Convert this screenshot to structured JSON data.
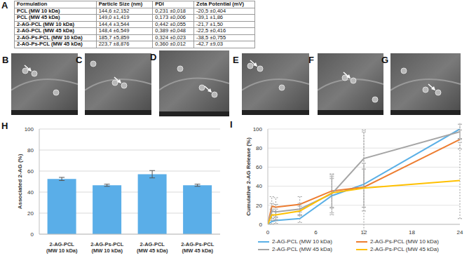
{
  "panel_labels": {
    "table": "A",
    "images": [
      "B",
      "C",
      "D",
      "E",
      "F",
      "G"
    ],
    "charts": [
      "H",
      "I"
    ]
  },
  "table": {
    "header": [
      "Formulation",
      "Particle Size (nm)",
      "PDI",
      "Zeta Potential (mV)"
    ],
    "rows": [
      [
        "PCL (MW 10 kDa)",
        "144,6 ±2,152",
        "0,231 ±0,018",
        "-20,5 ±0,404"
      ],
      [
        "PCL (MW 45 kDa)",
        "149,0 ±1,419",
        "0,173 ±0,006",
        "-39,1 ±1,86"
      ],
      [
        "2-AG-PCL (MW 10 kDa)",
        "144,4 ±3,544",
        "0,442 ±0,055",
        "-21,7 ±1,50"
      ],
      [
        "2-AG-PCL (MW 45 kDa)",
        "148,4 ±6,549",
        "0,389 ±0,048",
        "-22,5 ±0,416"
      ],
      [
        "2-AG-Ps-PCL (MW 10 kDa)",
        "185,7 ±5,859",
        "0,324 ±0,023",
        "-38,5 ±0,755"
      ],
      [
        "2-AG-Ps-PCL (MW 45 kDa)",
        "223,7 ±8,876",
        "0,360 ±0,012",
        "-42,7 ±9,03"
      ]
    ]
  },
  "chart_data": [
    {
      "type": "bar",
      "categories": [
        "2-AG-PCL (MW 10 kDa)",
        "2-AG-Ps-PCL (MW 10 kDa)",
        "2-AG-PCL (MW 45 kDa)",
        "2-AG-Ps-PCL (MW 45 kDa)"
      ],
      "values": [
        52.5,
        46.5,
        57,
        46.5
      ],
      "errors": [
        1.5,
        1,
        3.5,
        1
      ],
      "color": "#5aaee8",
      "y_label": "Associated 2-AG (%)",
      "ylim": [
        0,
        100
      ],
      "yticks": [
        0,
        20,
        40,
        60,
        80,
        100
      ],
      "grid": true
    },
    {
      "type": "line",
      "x": [
        0,
        0.5,
        1,
        4,
        8,
        12,
        24
      ],
      "xlim": [
        0,
        24
      ],
      "xticks": [
        0,
        6,
        12,
        18,
        24
      ],
      "ylim": [
        0,
        100
      ],
      "yticks": [
        0,
        20,
        40,
        60,
        80,
        100
      ],
      "y_label": "Cumulative 2-AG Release (%)",
      "grid": true,
      "legend": "bottom",
      "series": [
        {
          "name": "2-AG-PCL (MW 10 kDa)",
          "color": "#5bb0e6",
          "values": [
            0,
            3,
            4,
            6,
            30,
            42,
            100
          ],
          "errors": [
            0,
            3,
            3,
            4,
            20,
            55,
            10
          ]
        },
        {
          "name": "2-AG-Ps-PCL (MW 10 kDa)",
          "color": "#ed7d31",
          "values": [
            0,
            19,
            18,
            21,
            35,
            39,
            89
          ],
          "errors": [
            0,
            10,
            10,
            8,
            18,
            25,
            10
          ]
        },
        {
          "name": "2-AG-PCL (MW 45 kDa)",
          "color": "#a5a5a5",
          "values": [
            0,
            14,
            13,
            16,
            32,
            69,
            97
          ],
          "errors": [
            0,
            8,
            8,
            6,
            20,
            30,
            8
          ]
        },
        {
          "name": "2-AG-Ps-PCL (MW 45 kDa)",
          "color": "#ffc000",
          "values": [
            0,
            10,
            10,
            14,
            33,
            38,
            46
          ],
          "errors": [
            0,
            6,
            6,
            5,
            15,
            20,
            40
          ]
        }
      ]
    }
  ]
}
